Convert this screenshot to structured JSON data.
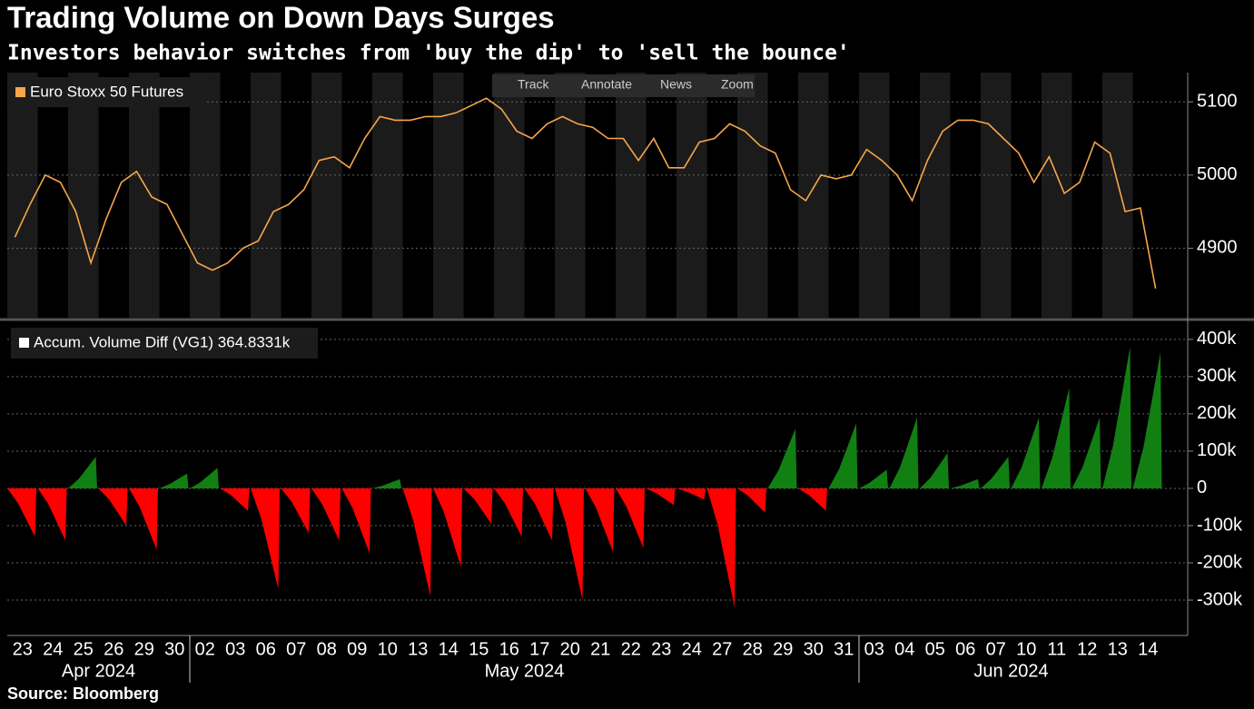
{
  "title": "Trading Volume on Down Days Surges",
  "subtitle": "Investors behavior switches from 'buy the dip' to 'sell the bounce'",
  "source": "Source: Bloomberg",
  "toolbar": [
    "Track",
    "Annotate",
    "News",
    "Zoom"
  ],
  "chart_data": [
    {
      "type": "line",
      "series": [
        {
          "name": "Euro Stoxx 50 Futures",
          "color": "#f7a54a",
          "values": [
            4915,
            4960,
            5000,
            4990,
            4950,
            4880,
            4940,
            4990,
            5005,
            4970,
            4960,
            4920,
            4880,
            4870,
            4880,
            4900,
            4910,
            4950,
            4960,
            4980,
            5020,
            5025,
            5010,
            5050,
            5080,
            5075,
            5075,
            5080,
            5080,
            5085,
            5095,
            5105,
            5090,
            5060,
            5050,
            5070,
            5080,
            5070,
            5065,
            5050,
            5050,
            5020,
            5050,
            5010,
            5010,
            5045,
            5050,
            5070,
            5060,
            5040,
            5030,
            4980,
            4965,
            5000,
            4995,
            5000,
            5035,
            5020,
            5000,
            4965,
            5020,
            5060,
            5075,
            5075,
            5070,
            5050,
            5030,
            4990,
            5025,
            4975,
            4990,
            5045,
            5030,
            4950,
            4955,
            4845
          ]
        }
      ],
      "ylim": [
        4805,
        5140
      ],
      "yticks": [
        4900,
        5000,
        5100
      ],
      "grid": true
    },
    {
      "type": "area",
      "category_groups": [
        {
          "name": "Apr 2024",
          "categories": [
            "23",
            "24",
            "25",
            "26",
            "29",
            "30"
          ]
        },
        {
          "name": "May 2024",
          "categories": [
            "02",
            "03",
            "06",
            "07",
            "08",
            "09",
            "10",
            "13",
            "14",
            "15",
            "16",
            "17",
            "20",
            "21",
            "22",
            "23",
            "24",
            "27",
            "28",
            "29",
            "30",
            "31"
          ]
        },
        {
          "name": "Jun 2024",
          "categories": [
            "03",
            "04",
            "05",
            "06",
            "07",
            "10",
            "11",
            "12",
            "13",
            "14"
          ]
        }
      ],
      "series": [
        {
          "name": "Accum. Volume Diff (VG1) 364.8331k",
          "color": "#ffffff",
          "positive_color": "#127f12",
          "negative_color": "#ff0000",
          "values": [
            -130000,
            -140000,
            85000,
            -100000,
            -165000,
            40000,
            55000,
            -60000,
            -270000,
            -120000,
            -140000,
            -175000,
            25000,
            -290000,
            -210000,
            -95000,
            -130000,
            -140000,
            -300000,
            -170000,
            -160000,
            -45000,
            -30000,
            -320000,
            -65000,
            160000,
            -60000,
            175000,
            50000,
            190000,
            95000,
            25000,
            85000,
            190000,
            270000,
            190000,
            380000,
            365000
          ]
        }
      ],
      "ylim": [
        -395000,
        446000
      ],
      "yticks": [
        {
          "value": -300000,
          "label": "-300k"
        },
        {
          "value": -200000,
          "label": "-200k"
        },
        {
          "value": -100000,
          "label": "-100k"
        },
        0,
        {
          "value": 100000,
          "label": "100k"
        },
        {
          "value": 200000,
          "label": "200k"
        },
        {
          "value": 300000,
          "label": "300k"
        },
        {
          "value": 400000,
          "label": "400k"
        }
      ],
      "grid": true
    }
  ]
}
